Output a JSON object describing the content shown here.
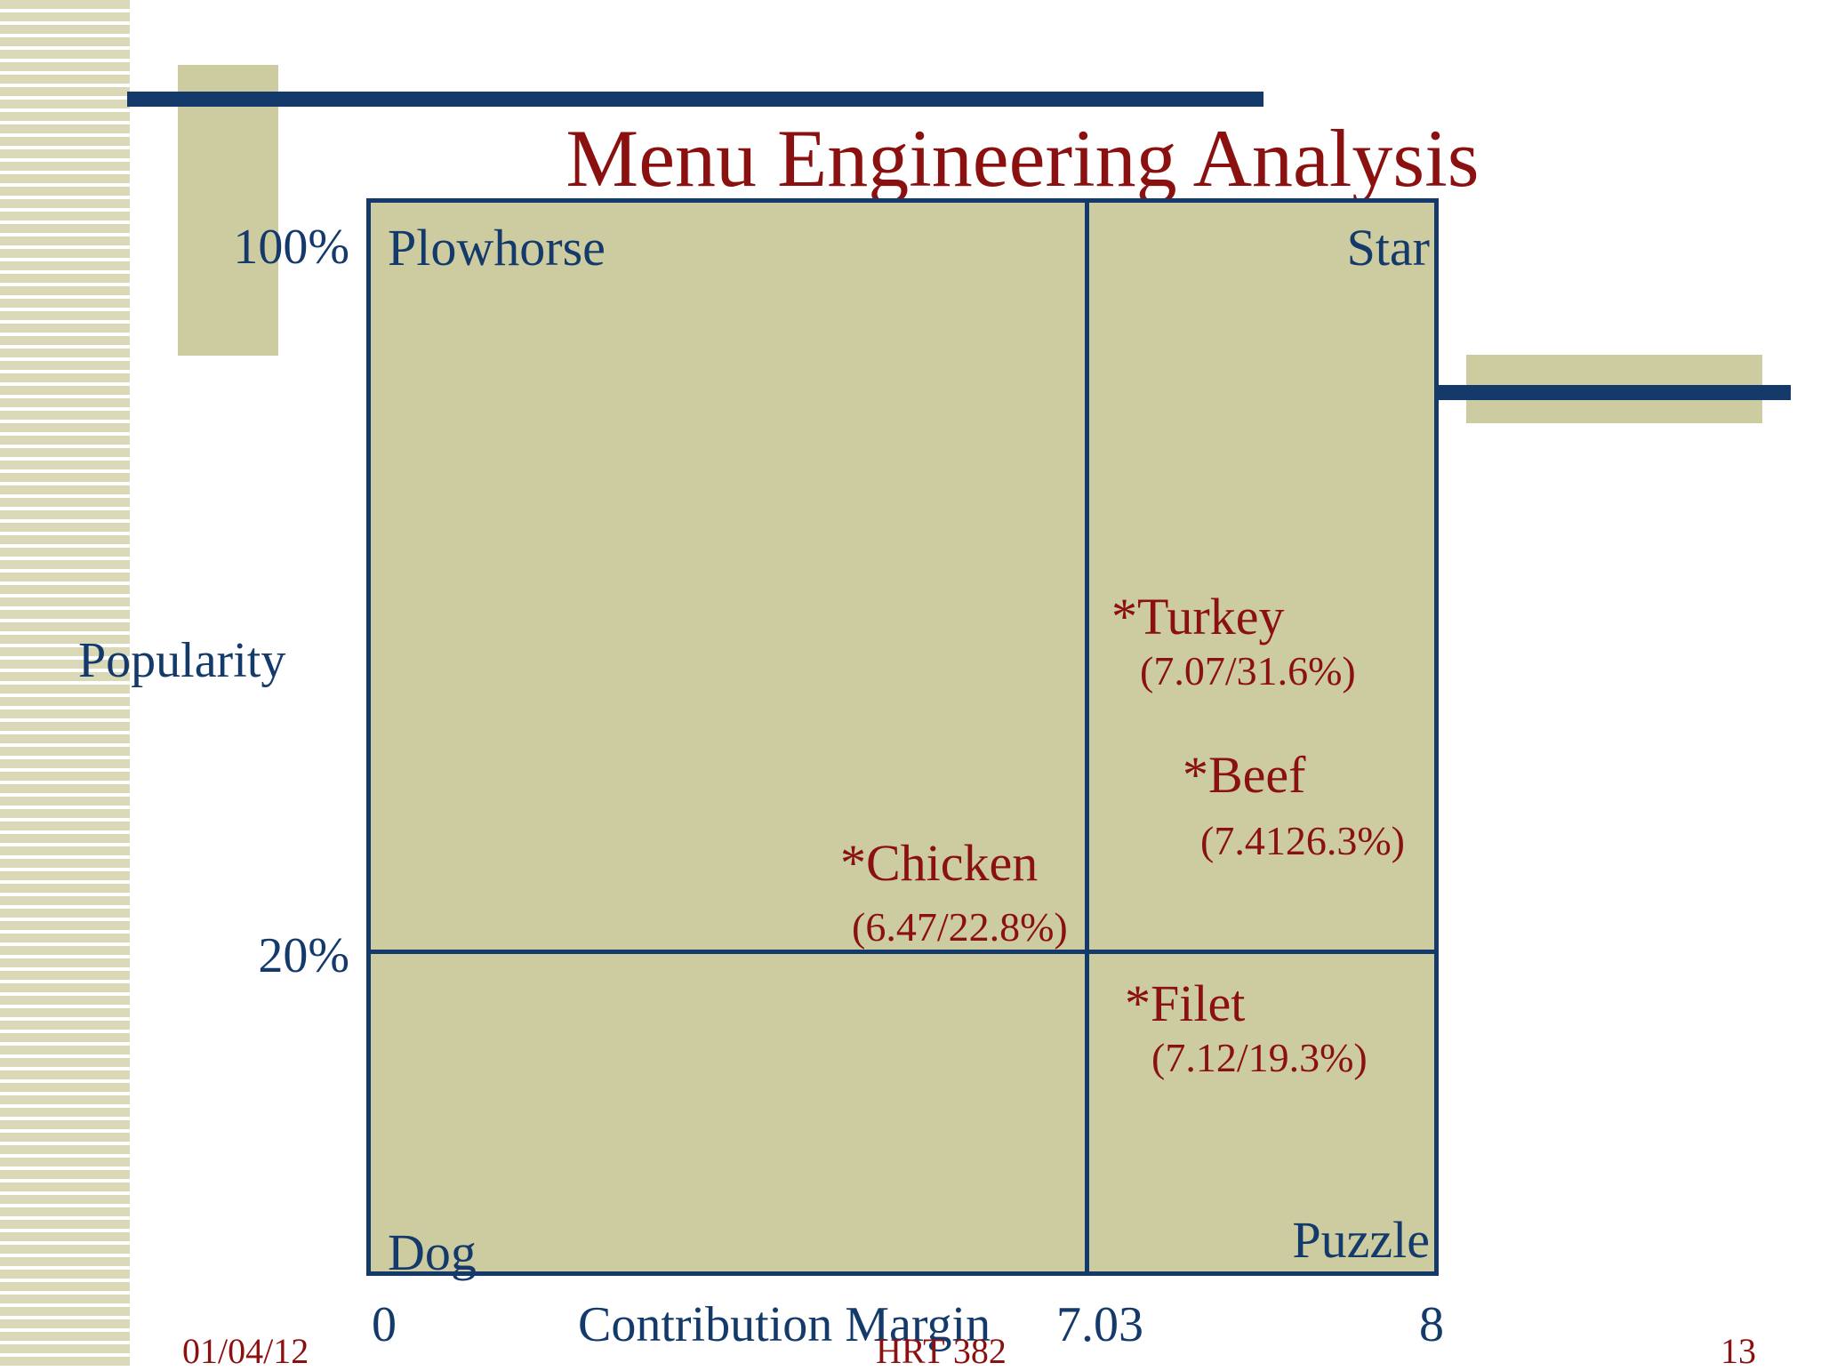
{
  "title": "Menu Engineering Analysis",
  "quadrants": {
    "top_left": "Plowhorse",
    "top_right": "Star",
    "bottom_left": "Dog",
    "bottom_right": "Puzzle"
  },
  "y_axis": {
    "label": "Popularity",
    "ticks": [
      "100%",
      "20%"
    ]
  },
  "x_axis": {
    "label": "Contribution Margin",
    "ticks": [
      "0",
      "7.03",
      "8"
    ]
  },
  "items": [
    {
      "name": "*Turkey",
      "value": "(7.07/31.6%)"
    },
    {
      "name": "*Beef",
      "value": "(7.4126.3%)"
    },
    {
      "name": "*Chicken",
      "value": "(6.47/22.8%)"
    },
    {
      "name": "*Filet",
      "value": "(7.12/19.3%)"
    }
  ],
  "footer": {
    "date": "01/04/12",
    "course": "HRT 382",
    "page": "13"
  },
  "colors": {
    "title": "#8b1010",
    "navy": "#143a6b",
    "matrix_fill": "#cccca0"
  }
}
